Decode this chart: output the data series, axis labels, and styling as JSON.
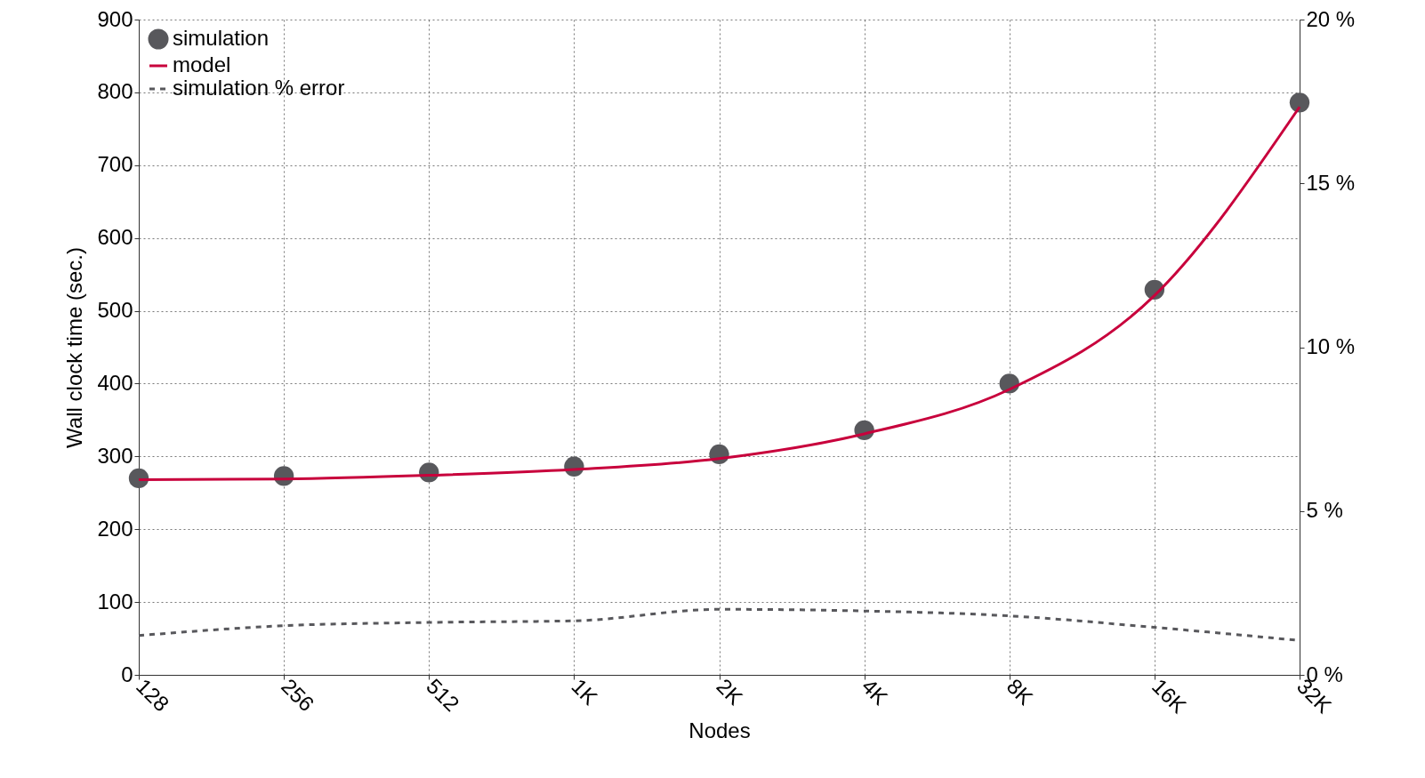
{
  "chart_data": {
    "type": "line",
    "xlabel": "Nodes",
    "ylabel": "Wall clock time (sec.)",
    "categories": [
      "128",
      "256",
      "512",
      "1K",
      "2K",
      "4K",
      "8K",
      "16K",
      "32K"
    ],
    "ylim": [
      0,
      900
    ],
    "yticks": [
      0,
      100,
      200,
      300,
      400,
      500,
      600,
      700,
      800,
      900
    ],
    "y2lim": [
      0,
      20
    ],
    "y2ticks": [
      {
        "value": 0,
        "label": "0 %"
      },
      {
        "value": 5,
        "label": "5 %"
      },
      {
        "value": 10,
        "label": "10 %"
      },
      {
        "value": 15,
        "label": "15 %"
      },
      {
        "value": 20,
        "label": "20 %"
      }
    ],
    "grid": true,
    "legend": "top left",
    "series": [
      {
        "name": "simulation",
        "type": "scatter",
        "marker": "circle",
        "color": "#58585c",
        "values": [
          270,
          273,
          278,
          286,
          303,
          336,
          400,
          529,
          786
        ]
      },
      {
        "name": "model",
        "type": "line",
        "line_style": "solid",
        "color": "#c8003c",
        "values": [
          268,
          269,
          274,
          282,
          297,
          331,
          392,
          521,
          780
        ]
      },
      {
        "name": "simulation % error",
        "type": "line",
        "axis": "y2",
        "line_style": "dashed",
        "color": "#58585c",
        "values": [
          1.2,
          1.5,
          1.6,
          1.65,
          2.0,
          1.95,
          1.8,
          1.45,
          1.05
        ]
      }
    ]
  }
}
